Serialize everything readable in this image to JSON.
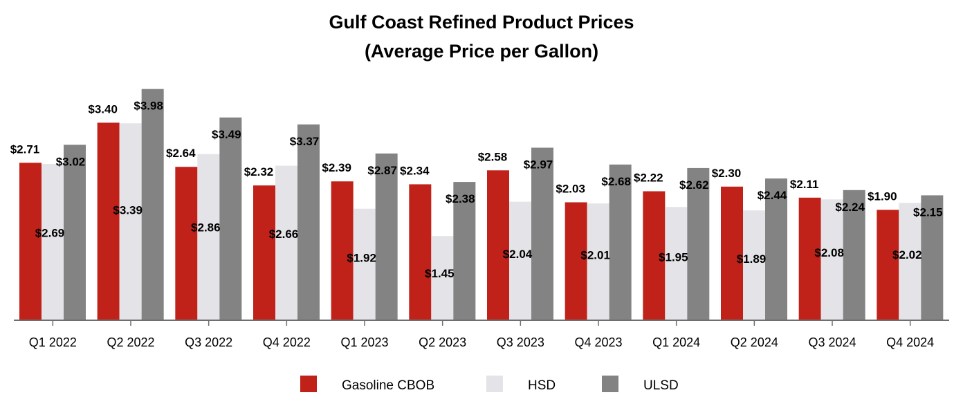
{
  "chart_data": {
    "type": "bar",
    "title": "Gulf Coast Refined Product Prices",
    "subtitle": "(Average Price per Gallon)",
    "xlabel": "",
    "ylabel": "",
    "ylim": [
      0,
      4.2
    ],
    "grid": false,
    "legend_position": "bottom-center",
    "categories": [
      "Q1 2022",
      "Q2 2022",
      "Q3 2022",
      "Q4 2022",
      "Q1 2023",
      "Q2 2023",
      "Q3 2023",
      "Q4 2023",
      "Q1 2024",
      "Q2 2024",
      "Q3 2024",
      "Q4 2024"
    ],
    "series": [
      {
        "name": "Gasoline CBOB",
        "color": "#C0221A",
        "values": [
          2.71,
          3.4,
          2.64,
          2.32,
          2.39,
          2.34,
          2.58,
          2.03,
          2.22,
          2.3,
          2.11,
          1.9
        ],
        "labels": [
          "$2.71",
          "$3.40",
          "$2.64",
          "$2.32",
          "$2.39",
          "$2.34",
          "$2.58",
          "$2.03",
          "$2.22",
          "$2.30",
          "$2.11",
          "$1.90"
        ]
      },
      {
        "name": "HSD",
        "color": "#E4E4E8",
        "values": [
          2.69,
          3.39,
          2.86,
          2.66,
          1.92,
          1.45,
          2.04,
          2.01,
          1.95,
          1.89,
          2.08,
          2.02
        ],
        "labels": [
          "$2.69",
          "$3.39",
          "$2.86",
          "$2.66",
          "$1.92",
          "$1.45",
          "$2.04",
          "$2.01",
          "$1.95",
          "$1.89",
          "$2.08",
          "$2.02"
        ]
      },
      {
        "name": "ULSD",
        "color": "#838383",
        "values": [
          3.02,
          3.98,
          3.49,
          3.37,
          2.87,
          2.38,
          2.97,
          2.68,
          2.62,
          2.44,
          2.24,
          2.15
        ],
        "labels": [
          "$3.02",
          "$3.98",
          "$3.49",
          "$3.37",
          "$2.87",
          "$2.38",
          "$2.97",
          "$2.68",
          "$2.62",
          "$2.44",
          "$2.24",
          "$2.15"
        ]
      }
    ]
  }
}
